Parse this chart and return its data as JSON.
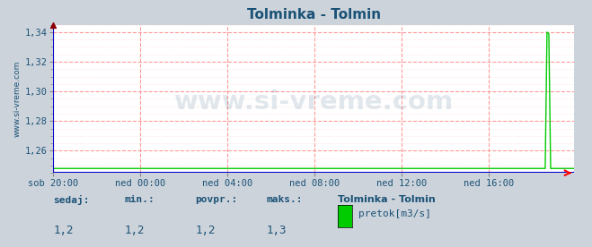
{
  "title": "Tolminka - Tolmin",
  "title_color": "#1a5276",
  "bg_color": "#cdd3db",
  "plot_bg_color": "#ffffff",
  "grid_color_major": "#ff9999",
  "grid_color_minor": "#ffcccc",
  "line_color": "#00cc00",
  "axis_line_color": "#0000cc",
  "ylabel_text": "www.si-vreme.com",
  "ylabel_color": "#1a5276",
  "ylim": [
    1.245,
    1.345
  ],
  "yticks": [
    1.26,
    1.28,
    1.3,
    1.32,
    1.34
  ],
  "ytick_labels": [
    "1,26",
    "1,28",
    "1,30",
    "1,32",
    "1,34"
  ],
  "n_points": 288,
  "spike_index": 272,
  "spike_value": 1.34,
  "baseline_value": 1.248,
  "xtick_labels": [
    "sob 20:00",
    "ned 00:00",
    "ned 04:00",
    "ned 08:00",
    "ned 12:00",
    "ned 16:00"
  ],
  "xtick_positions": [
    0,
    48,
    96,
    144,
    192,
    240
  ],
  "footer_labels": [
    "sedaj:",
    "min.:",
    "povpr.:",
    "maks.:"
  ],
  "footer_values": [
    "1,2",
    "1,2",
    "1,2",
    "1,3"
  ],
  "footer_station": "Tolminka - Tolmin",
  "footer_series": "pretok[m3/s]",
  "footer_color": "#1a5276",
  "legend_color": "#00cc00",
  "watermark": "www.si-vreme.com",
  "watermark_color": "#1a5276",
  "watermark_alpha": 0.13
}
